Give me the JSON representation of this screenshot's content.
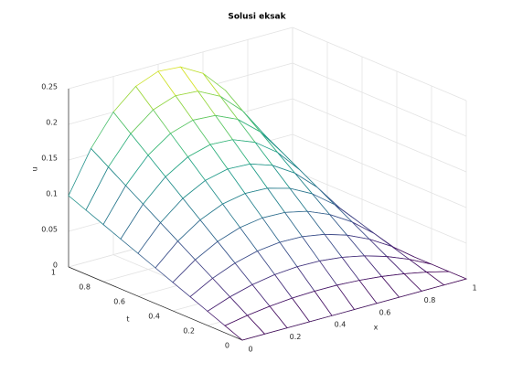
{
  "chart_data": {
    "type": "surface",
    "title": "Solusi eksak",
    "xlabel": "x",
    "ylabel": "t",
    "zlabel": "u",
    "colormap": "viridis",
    "grid": true,
    "x": [
      0,
      0.1,
      0.2,
      0.3,
      0.4,
      0.5,
      0.6,
      0.7,
      0.8,
      0.9,
      1
    ],
    "y": [
      0,
      0.1,
      0.2,
      0.3,
      0.4,
      0.5,
      0.6,
      0.7,
      0.8,
      0.9,
      1
    ],
    "z": [
      [
        0,
        0,
        0,
        0,
        0,
        0,
        0,
        0,
        0,
        0,
        0
      ],
      [
        0.01,
        0.0158,
        0.02,
        0.0228,
        0.024,
        0.0238,
        0.022,
        0.0188,
        0.014,
        0.0078,
        0
      ],
      [
        0.02,
        0.0315,
        0.04,
        0.0455,
        0.048,
        0.0475,
        0.044,
        0.0375,
        0.028,
        0.0155,
        0
      ],
      [
        0.03,
        0.0473,
        0.06,
        0.0683,
        0.072,
        0.0713,
        0.066,
        0.0563,
        0.042,
        0.0233,
        0
      ],
      [
        0.04,
        0.063,
        0.08,
        0.091,
        0.096,
        0.095,
        0.088,
        0.075,
        0.056,
        0.031,
        0
      ],
      [
        0.05,
        0.0788,
        0.1,
        0.1138,
        0.12,
        0.1188,
        0.11,
        0.0938,
        0.07,
        0.0388,
        0
      ],
      [
        0.06,
        0.0945,
        0.12,
        0.1365,
        0.144,
        0.1425,
        0.132,
        0.1125,
        0.084,
        0.0465,
        0
      ],
      [
        0.07,
        0.1103,
        0.14,
        0.1593,
        0.168,
        0.1663,
        0.154,
        0.1313,
        0.098,
        0.0543,
        0
      ],
      [
        0.08,
        0.126,
        0.16,
        0.182,
        0.192,
        0.19,
        0.176,
        0.15,
        0.112,
        0.062,
        0
      ],
      [
        0.09,
        0.1418,
        0.18,
        0.2048,
        0.216,
        0.2138,
        0.198,
        0.1688,
        0.126,
        0.0698,
        0
      ],
      [
        0.1,
        0.1575,
        0.2,
        0.2275,
        0.24,
        0.2375,
        0.22,
        0.1875,
        0.14,
        0.0775,
        0
      ]
    ],
    "xlim": [
      0,
      1
    ],
    "ylim": [
      0,
      1
    ],
    "zlim": [
      0,
      0.25
    ],
    "xticks": [
      0,
      0.2,
      0.4,
      0.6,
      0.8,
      1
    ],
    "yticks": [
      0,
      0.2,
      0.4,
      0.6,
      0.8,
      1
    ],
    "zticks": [
      0,
      0.05,
      0.1,
      0.15,
      0.2,
      0.25
    ]
  }
}
